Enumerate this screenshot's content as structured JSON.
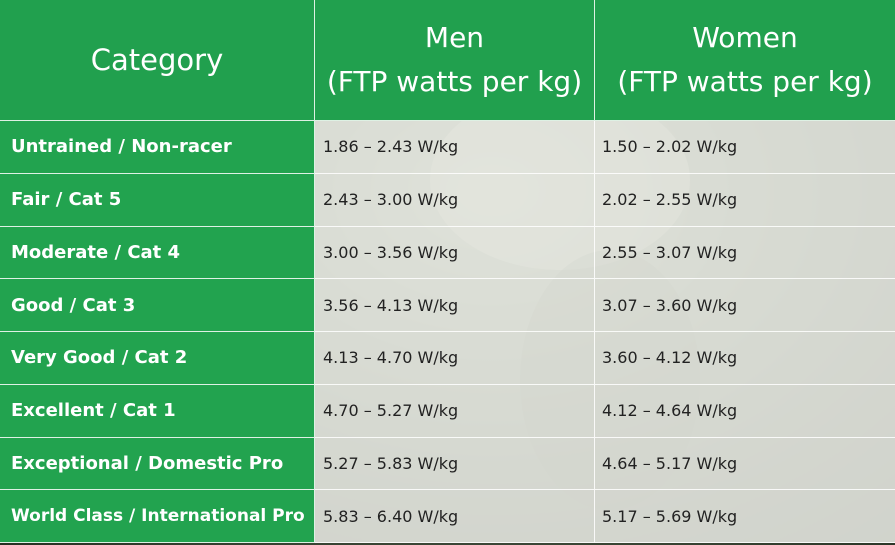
{
  "header": {
    "category": "Category",
    "men_line1": "Men",
    "men_line2": "(FTP watts per kg)",
    "women_line1": "Women",
    "women_line2": "(FTP watts per kg)"
  },
  "rows": [
    {
      "category": "Untrained / Non-racer",
      "men": "1.86 – 2.43 W/kg",
      "women": "1.50 – 2.02 W/kg"
    },
    {
      "category": "Fair / Cat 5",
      "men": "2.43 – 3.00 W/kg",
      "women": "2.02 – 2.55 W/kg"
    },
    {
      "category": "Moderate / Cat 4",
      "men": "3.00 – 3.56 W/kg",
      "women": "2.55 – 3.07 W/kg"
    },
    {
      "category": "Good / Cat 3",
      "men": "3.56 – 4.13 W/kg",
      "women": "3.07 – 3.60 W/kg"
    },
    {
      "category": "Very Good / Cat 2",
      "men": "4.13 – 4.70 W/kg",
      "women": "3.60 – 4.12 W/kg"
    },
    {
      "category": "Excellent / Cat 1",
      "men": "4.70 – 5.27 W/kg",
      "women": "4.12 – 4.64 W/kg"
    },
    {
      "category": "Exceptional / Domestic Pro",
      "men": "5.27 – 5.83 W/kg",
      "women": "4.64 – 5.17 W/kg"
    },
    {
      "category": "World Class / International Pro",
      "men": "5.83 – 6.40 W/kg",
      "women": "5.17 – 5.69 W/kg"
    }
  ],
  "colors": {
    "header_green": "#21a04e",
    "category_green": "#22a34f",
    "value_background": "#eceee8"
  }
}
